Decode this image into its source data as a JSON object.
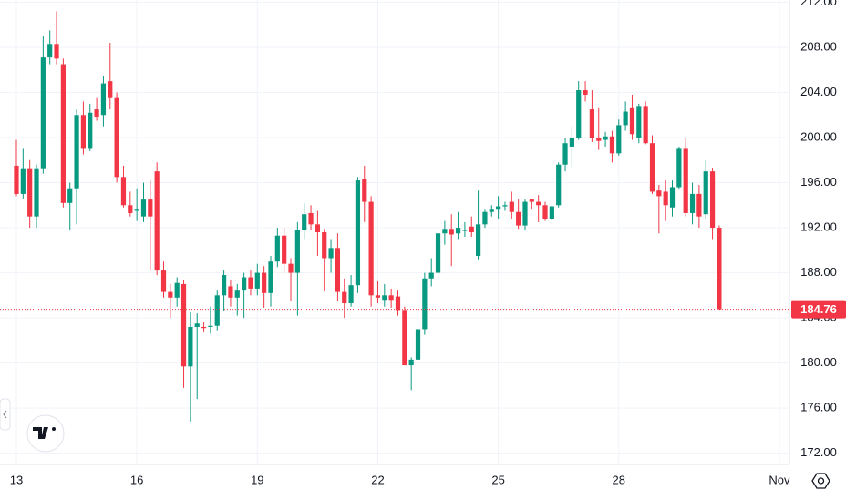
{
  "chart_data": {
    "type": "candlestick",
    "x": [
      0,
      1,
      2,
      3,
      4,
      5,
      6,
      7,
      8,
      9,
      10,
      11,
      12,
      13,
      14,
      15,
      16,
      17,
      18,
      19,
      20,
      21,
      22,
      23,
      24,
      25,
      26,
      27,
      28,
      29,
      30,
      31,
      32,
      33,
      34,
      35,
      36,
      37,
      38,
      39,
      40,
      41,
      42,
      43,
      44,
      45,
      46,
      47,
      48,
      49,
      50,
      51,
      52,
      53,
      54,
      55,
      56,
      57,
      58,
      59,
      60,
      61,
      62,
      63,
      64,
      65,
      66,
      67,
      68,
      69,
      70,
      71,
      72,
      73,
      74,
      75,
      76,
      77,
      78,
      79,
      80,
      81,
      82,
      83,
      84,
      85,
      86,
      87,
      88,
      89,
      90,
      91,
      92,
      93,
      94,
      95,
      96,
      97,
      98,
      99,
      100,
      101,
      102,
      103,
      104,
      105
    ],
    "open": [
      197.5,
      195.0,
      197.2,
      193.0,
      197.2,
      207.1,
      208.3,
      206.5,
      194.2,
      195.5,
      202.0,
      199.0,
      202.5,
      202.0,
      205.0,
      203.5,
      196.5,
      194.0,
      193.5,
      193.0,
      194.5,
      197.0,
      188.2,
      186.3,
      185.8,
      187.0,
      179.7,
      183.2,
      183.2,
      183.2,
      183.3,
      186.0,
      186.8,
      185.8,
      186.5,
      187.6,
      186.6,
      188.0,
      186.2,
      189.0,
      191.3,
      188.8,
      188.0,
      191.8,
      193.3,
      192.3,
      191.6,
      189.3,
      190.2,
      186.3,
      185.3,
      186.9,
      196.3,
      194.3,
      186.0,
      185.6,
      186.0,
      185.9,
      184.7,
      179.8,
      180.3,
      183.0,
      187.5,
      188.0,
      191.5,
      191.9,
      191.5,
      191.8,
      192.1,
      189.5,
      192.3,
      193.4,
      193.6,
      193.9,
      194.3,
      193.4,
      192.2,
      194.5,
      194.3,
      194.0,
      192.8,
      194.0,
      197.6,
      199.2,
      200.0,
      204.2,
      202.5,
      200.0,
      199.8,
      200.1,
      198.6,
      201.1,
      202.6,
      200.0,
      202.8,
      199.5,
      195.3,
      195.2,
      193.8,
      195.6,
      199.0,
      193.3,
      195.0,
      193.2,
      197.0,
      192.0
    ],
    "high": [
      199.8,
      199.0,
      198.0,
      197.6,
      209.0,
      209.5,
      211.2,
      207.0,
      196.0,
      202.5,
      203.2,
      203.0,
      203.5,
      205.5,
      208.4,
      204.0,
      197.5,
      195.2,
      195.5,
      196.0,
      196.2,
      197.8,
      189.0,
      187.0,
      187.6,
      187.4,
      184.5,
      184.4,
      183.6,
      185.0,
      186.5,
      188.2,
      187.4,
      187.0,
      188.0,
      188.2,
      188.8,
      188.6,
      189.5,
      192.0,
      192.0,
      189.3,
      192.5,
      194.2,
      194.0,
      193.5,
      191.9,
      191.0,
      191.5,
      187.5,
      187.8,
      196.5,
      197.5,
      194.8,
      187.3,
      187.0,
      186.6,
      186.5,
      185.0,
      180.5,
      183.8,
      188.0,
      189.3,
      191.5,
      192.6,
      193.2,
      193.4,
      192.5,
      193.0,
      195.3,
      193.6,
      194.0,
      194.8,
      194.3,
      195.2,
      194.5,
      194.5,
      194.6,
      194.9,
      194.3,
      194.0,
      197.8,
      200.0,
      201.0,
      205.0,
      205.0,
      204.2,
      202.6,
      200.5,
      200.6,
      201.6,
      203.2,
      203.8,
      203.0,
      203.2,
      200.2,
      195.8,
      196.2,
      196.2,
      199.2,
      200.0,
      196.0,
      195.8,
      198.0,
      197.3,
      192.2
    ],
    "low": [
      194.8,
      194.6,
      192.0,
      192.0,
      196.8,
      206.5,
      206.5,
      193.8,
      191.8,
      192.3,
      198.5,
      198.8,
      201.5,
      201.0,
      202.5,
      196.0,
      193.8,
      193.0,
      192.6,
      192.5,
      188.2,
      187.8,
      185.8,
      184.0,
      185.0,
      177.8,
      174.8,
      176.8,
      182.8,
      182.6,
      182.9,
      184.6,
      185.0,
      184.2,
      184.0,
      186.0,
      186.0,
      184.9,
      185.0,
      188.5,
      188.0,
      185.5,
      184.2,
      191.0,
      191.8,
      189.5,
      186.4,
      188.0,
      185.5,
      184.0,
      185.0,
      186.2,
      192.5,
      185.0,
      185.3,
      185.0,
      184.9,
      184.2,
      179.8,
      177.6,
      180.0,
      182.5,
      186.8,
      187.8,
      190.5,
      188.6,
      191.0,
      191.2,
      191.2,
      189.2,
      192.0,
      193.0,
      192.8,
      193.5,
      192.8,
      191.9,
      191.8,
      193.6,
      192.5,
      192.6,
      192.6,
      193.8,
      197.0,
      197.4,
      199.8,
      203.2,
      199.6,
      198.9,
      199.2,
      197.8,
      198.4,
      200.6,
      199.8,
      199.5,
      199.4,
      195.0,
      191.5,
      192.6,
      193.0,
      195.4,
      193.0,
      192.3,
      192.0,
      192.8,
      191.0,
      184.76
    ],
    "close": [
      195.0,
      197.2,
      193.0,
      197.2,
      207.1,
      208.3,
      207.0,
      194.2,
      195.5,
      202.0,
      199.0,
      202.2,
      201.8,
      204.8,
      203.5,
      196.5,
      194.0,
      193.3,
      193.6,
      194.5,
      193.0,
      188.2,
      186.3,
      185.8,
      187.1,
      179.7,
      183.2,
      183.5,
      183.1,
      183.3,
      186.0,
      187.8,
      185.8,
      186.5,
      187.6,
      186.6,
      188.0,
      186.2,
      189.0,
      191.3,
      188.8,
      188.0,
      191.8,
      193.2,
      192.3,
      191.6,
      189.3,
      190.2,
      186.3,
      185.3,
      186.9,
      196.2,
      194.3,
      186.0,
      185.8,
      186.0,
      185.6,
      184.7,
      179.8,
      180.3,
      183.0,
      187.5,
      188.0,
      191.5,
      191.9,
      191.4,
      192.0,
      191.8,
      191.6,
      192.3,
      193.4,
      193.6,
      193.9,
      194.0,
      193.4,
      192.2,
      194.3,
      194.3,
      194.0,
      192.8,
      193.9,
      197.6,
      199.5,
      200.0,
      204.2,
      203.8,
      200.0,
      199.7,
      200.1,
      198.6,
      201.1,
      202.3,
      200.3,
      202.8,
      199.5,
      195.2,
      194.8,
      194.0,
      195.6,
      199.0,
      193.3,
      195.0,
      193.0,
      197.0,
      192.0,
      184.76
    ],
    "up_color": "#089981",
    "down_color": "#f23645",
    "xlim": [
      -2.45,
      115.5
    ],
    "xticks": [
      {
        "value": 0,
        "label": "13"
      },
      {
        "value": 18,
        "label": "16"
      },
      {
        "value": 36,
        "label": "19"
      },
      {
        "value": 54,
        "label": "22"
      },
      {
        "value": 72,
        "label": "25"
      },
      {
        "value": 90,
        "label": "28"
      },
      {
        "value": 114,
        "label": "Nov"
      }
    ],
    "ylim": [
      171.0,
      212.2
    ],
    "yticks": [
      {
        "value": 172,
        "label": "172.00"
      },
      {
        "value": 176,
        "label": "176.00"
      },
      {
        "value": 180,
        "label": "180.00"
      },
      {
        "value": 184,
        "label": "184.00"
      },
      {
        "value": 188,
        "label": "188.00"
      },
      {
        "value": 192,
        "label": "192.00"
      },
      {
        "value": 196,
        "label": "196.00"
      },
      {
        "value": 200,
        "label": "200.00"
      },
      {
        "value": 204,
        "label": "204.00"
      },
      {
        "value": 208,
        "label": "208.00"
      },
      {
        "value": 212,
        "label": "212.00"
      }
    ],
    "grid": true
  }
}
